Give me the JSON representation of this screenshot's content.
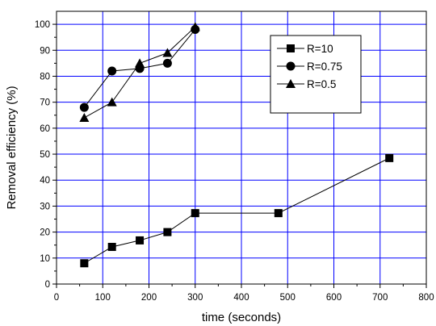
{
  "chart_data": {
    "type": "line",
    "title": "",
    "xlabel": "time (seconds)",
    "ylabel": "Removal efficiency (%)",
    "xlim": [
      0,
      800
    ],
    "ylim": [
      0,
      105
    ],
    "xticks": [
      0,
      100,
      200,
      300,
      400,
      500,
      600,
      700,
      800
    ],
    "yticks": [
      0,
      10,
      20,
      30,
      40,
      50,
      60,
      70,
      80,
      90,
      100
    ],
    "grid": true,
    "legend_position": "top-right",
    "series": [
      {
        "name": "R=10",
        "marker": "square",
        "color": "#000000",
        "x": [
          60,
          120,
          180,
          240,
          300,
          480,
          720
        ],
        "y": [
          8,
          14.3,
          16.8,
          20,
          27.3,
          27.3,
          48.5
        ]
      },
      {
        "name": "R=0.75",
        "marker": "circle",
        "color": "#000000",
        "x": [
          60,
          120,
          180,
          240,
          300
        ],
        "y": [
          68,
          82,
          83,
          85,
          98
        ]
      },
      {
        "name": "R=0.5",
        "marker": "triangle",
        "color": "#000000",
        "x": [
          60,
          120,
          180,
          240,
          300
        ],
        "y": [
          64,
          70,
          85,
          89,
          99
        ]
      }
    ],
    "colors": {
      "grid": "#0000ff",
      "axis": "#000000",
      "background": "#ffffff"
    }
  }
}
